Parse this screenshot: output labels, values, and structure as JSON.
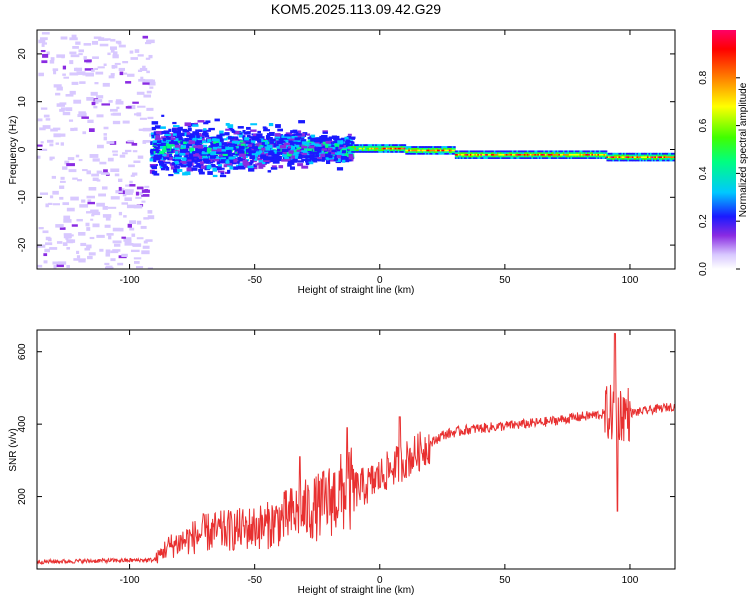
{
  "title": "KOM5.2025.113.09.42.G29",
  "chart_data": [
    {
      "type": "heatmap",
      "title": "KOM5.2025.113.09.42.G29",
      "xlabel": "Height of straight line (km)",
      "ylabel": "Frequency (Hz)",
      "xlim": [
        -137,
        118
      ],
      "ylim": [
        -25,
        25
      ],
      "xticks": [
        "-100",
        "-50",
        "0",
        "50",
        "100"
      ],
      "yticks": [
        "-20",
        "-10",
        "0",
        "10",
        "20"
      ],
      "colorbar": {
        "label": "Normalized spectral amplitude",
        "range": [
          0,
          1
        ],
        "ticks": [
          "0.0",
          "0.2",
          "0.4",
          "0.6",
          "0.8"
        ]
      },
      "features": [
        {
          "x_range": [
            -137,
            -92
          ],
          "freq_range": [
            -25,
            25
          ],
          "amplitude": 0.05,
          "note": "sparse low-amplitude noise"
        },
        {
          "x_range": [
            -92,
            -12
          ],
          "freq_range": [
            -7,
            8
          ],
          "amplitude": 0.2
        },
        {
          "x_range": [
            -12,
            118
          ],
          "freq_center": [
            0.5,
            -1.5
          ],
          "amplitude_peak": 0.95
        }
      ]
    },
    {
      "type": "line",
      "xlabel": "Height of straight line (km)",
      "ylabel": "SNR (v/v)",
      "xlim": [
        -137,
        118
      ],
      "ylim": [
        0,
        660
      ],
      "xticks": [
        "-100",
        "-50",
        "0",
        "50",
        "100"
      ],
      "yticks": [
        "200",
        "400",
        "600"
      ],
      "color": "#e83030",
      "anchors": [
        {
          "x": -137,
          "y": 20
        },
        {
          "x": -90,
          "y": 25
        },
        {
          "x": -85,
          "y": 60
        },
        {
          "x": -70,
          "y": 100
        },
        {
          "x": -55,
          "y": 110
        },
        {
          "x": -45,
          "y": 120
        },
        {
          "x": -35,
          "y": 150
        },
        {
          "x": -25,
          "y": 170
        },
        {
          "x": -15,
          "y": 210
        },
        {
          "x": -5,
          "y": 230
        },
        {
          "x": 5,
          "y": 280
        },
        {
          "x": 15,
          "y": 320
        },
        {
          "x": 25,
          "y": 370
        },
        {
          "x": 35,
          "y": 385
        },
        {
          "x": 50,
          "y": 395
        },
        {
          "x": 65,
          "y": 405
        },
        {
          "x": 80,
          "y": 420
        },
        {
          "x": 92,
          "y": 430
        },
        {
          "x": 100,
          "y": 430
        },
        {
          "x": 118,
          "y": 450
        }
      ],
      "peaks": [
        {
          "x": -32,
          "y": 310
        },
        {
          "x": -13,
          "y": 390
        },
        {
          "x": 8,
          "y": 420
        },
        {
          "x": 94,
          "y": 650
        },
        {
          "x": 95,
          "y": 160
        }
      ]
    }
  ]
}
